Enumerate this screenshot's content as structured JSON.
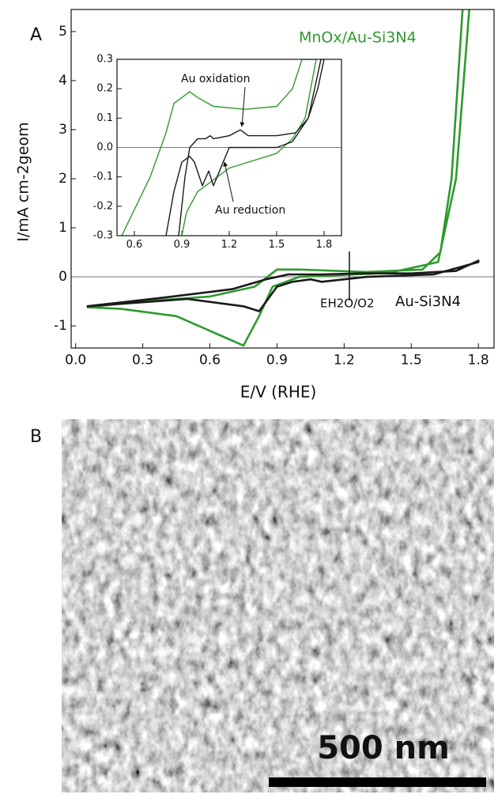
{
  "chart_data": [
    {
      "type": "line",
      "panel_label": "A",
      "x_label": "E/V (RHE)",
      "y_label": "I/mA cm-2geom",
      "annotations": [
        "EH2O/O2"
      ],
      "xlim": [
        -0.02,
        1.87
      ],
      "ylim": [
        -1.45,
        5.45
      ],
      "xticks": [
        {
          "value": 0,
          "label": "0.0"
        },
        0.3,
        0.6,
        0.9,
        1.2,
        1.5,
        1.8
      ],
      "yticks": [
        -1,
        0,
        1,
        2,
        3,
        4,
        5
      ],
      "series": [
        {
          "name": "MnOx/Au-Si3N4",
          "color": "#2e9a2e",
          "x": [
            0.05,
            0.3,
            0.6,
            0.8,
            0.9,
            1.0,
            1.3,
            1.55,
            1.63,
            1.68,
            1.73,
            1.76,
            1.7,
            1.62,
            1.4,
            1.0,
            0.88,
            0.82,
            0.75,
            0.65,
            0.45,
            0.2,
            0.05
          ],
          "values": [
            -0.62,
            -0.5,
            -0.4,
            -0.2,
            0.15,
            0.15,
            0.1,
            0.15,
            0.5,
            2,
            5.5,
            5.5,
            2,
            0.3,
            0.08,
            0.0,
            -0.2,
            -0.8,
            -1.4,
            -1.2,
            -0.8,
            -0.65,
            -0.62
          ]
        },
        {
          "name": "Au-Si3N4",
          "color": "#1a1a1a",
          "x": [
            0.05,
            0.4,
            0.7,
            0.85,
            0.95,
            1.1,
            1.27,
            1.5,
            1.7,
            1.8,
            1.8,
            1.6,
            1.3,
            1.1,
            1.05,
            0.97,
            0.9,
            0.82,
            0.75,
            0.5,
            0.2,
            0.05
          ],
          "values": [
            -0.6,
            -0.42,
            -0.25,
            -0.05,
            0.05,
            0.05,
            0.07,
            0.07,
            0.12,
            0.33,
            0.3,
            0.05,
            0.0,
            -0.1,
            -0.05,
            -0.1,
            -0.2,
            -0.7,
            -0.6,
            -0.45,
            -0.55,
            -0.6
          ]
        }
      ]
    },
    {
      "type": "line",
      "annotations": [
        "Au oxidation",
        "Au reduction"
      ],
      "xlim": [
        0.49,
        1.91
      ],
      "ylim": [
        -0.3,
        0.3
      ],
      "xticks": [
        0.6,
        0.9,
        1.2,
        1.5,
        1.8
      ],
      "yticks": [
        {
          "value": -0.3,
          "label": "-0.3"
        },
        -0.2,
        -0.1,
        {
          "value": 0,
          "label": "0.0"
        },
        0.1,
        0.2,
        0.3
      ],
      "series": [
        {
          "color": "#2e9a2e",
          "x": [
            0.52,
            0.7,
            0.8,
            0.85,
            0.95,
            1.0,
            1.1,
            1.3,
            1.5,
            1.6,
            1.66,
            1.75,
            1.68,
            1.6,
            1.5,
            1.2,
            1.0,
            0.93,
            0.9
          ],
          "values": [
            -0.3,
            -0.1,
            0.05,
            0.15,
            0.19,
            0.17,
            0.14,
            0.13,
            0.14,
            0.2,
            0.3,
            0.3,
            0.1,
            0.03,
            -0.02,
            -0.07,
            -0.15,
            -0.22,
            -0.3
          ]
        },
        {
          "color": "#1a1a1a",
          "x": [
            0.88,
            0.92,
            0.95,
            1.0,
            1.05,
            1.08,
            1.1,
            1.2,
            1.27,
            1.32,
            1.5,
            1.62,
            1.7,
            1.76,
            1.8,
            1.78,
            1.7,
            1.6,
            1.5,
            1.2,
            1.1,
            1.07,
            1.03,
            0.98,
            0.95,
            0.9,
            0.85,
            0.8
          ],
          "values": [
            -0.3,
            -0.1,
            0.0,
            0.03,
            0.03,
            0.04,
            0.03,
            0.04,
            0.06,
            0.04,
            0.04,
            0.05,
            0.1,
            0.2,
            0.3,
            0.3,
            0.1,
            0.02,
            0.0,
            0.0,
            -0.13,
            -0.08,
            -0.13,
            -0.05,
            -0.03,
            -0.05,
            -0.15,
            -0.3
          ]
        }
      ]
    }
  ],
  "image_panel": {
    "panel_label": "B",
    "scale_bar": "500 nm"
  }
}
